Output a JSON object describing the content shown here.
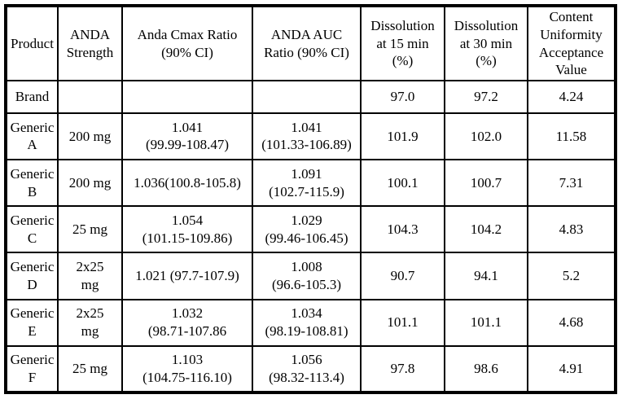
{
  "page": {
    "background_color": "#ffffff",
    "text_color": "#000000",
    "border_color": "#000000"
  },
  "table": {
    "columns": [
      {
        "label": "Product"
      },
      {
        "label": "ANDA\nStrength"
      },
      {
        "label": "Anda Cmax Ratio\n(90% CI)"
      },
      {
        "label": "ANDA AUC\nRatio (90% CI)"
      },
      {
        "label": "Dissolution\nat 15 min\n(%)"
      },
      {
        "label": "Dissolution\nat 30 min\n(%)"
      },
      {
        "label": "Content\nUniformity\nAcceptance\nValue"
      }
    ],
    "rows": [
      {
        "cells": [
          "Brand",
          "",
          "",
          "",
          "97.0",
          "97.2",
          "4.24"
        ]
      },
      {
        "cells": [
          "Generic\nA",
          "200 mg",
          "1.041\n(99.99-108.47)",
          "1.041\n(101.33-106.89)",
          "101.9",
          "102.0",
          "11.58"
        ]
      },
      {
        "cells": [
          "Generic\nB",
          "200 mg",
          "1.036(100.8-105.8)",
          "1.091\n(102.7-115.9)",
          "100.1",
          "100.7",
          "7.31"
        ]
      },
      {
        "cells": [
          "Generic\nC",
          "25 mg",
          "1.054\n(101.15-109.86)",
          "1.029\n(99.46-106.45)",
          "104.3",
          "104.2",
          "4.83"
        ]
      },
      {
        "cells": [
          "Generic\nD",
          "2x25\nmg",
          "1.021 (97.7-107.9)",
          "1.008\n(96.6-105.3)",
          "90.7",
          "94.1",
          "5.2"
        ]
      },
      {
        "cells": [
          "Generic\nE",
          "2x25\nmg",
          "1.032\n(98.71-107.86",
          "1.034\n(98.19-108.81)",
          "101.1",
          "101.1",
          "4.68"
        ]
      },
      {
        "cells": [
          "Generic\nF",
          "25 mg",
          "1.103\n(104.75-116.10)",
          "1.056\n(98.32-113.4)",
          "97.8",
          "98.6",
          "4.91"
        ]
      }
    ]
  }
}
